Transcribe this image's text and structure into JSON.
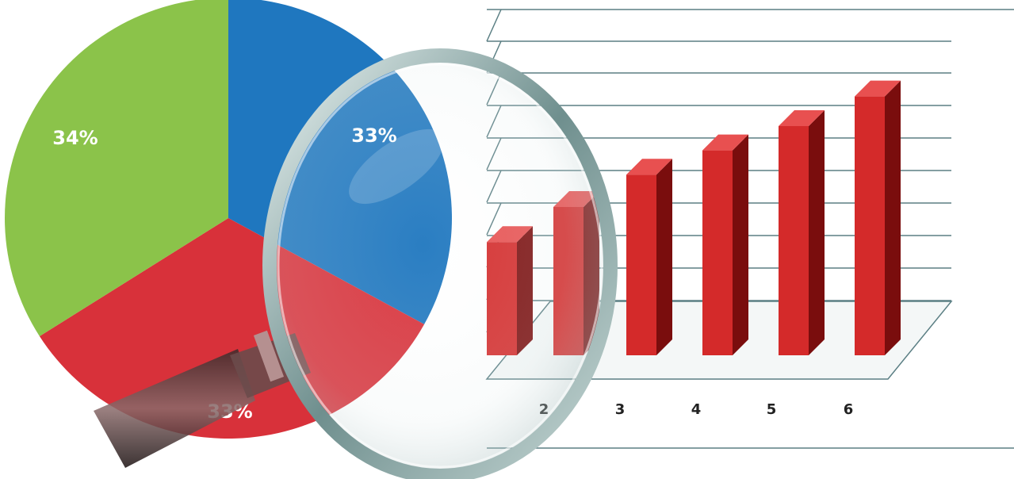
{
  "colors": {
    "blue": "#1f77bf",
    "red": "#d8313a",
    "green": "#8bc34a",
    "bar_front": "#d42a2a",
    "bar_side": "#7a0d0d",
    "bar_top": "#e85050",
    "grid": "#5b7f84"
  },
  "pie": {
    "slices": [
      {
        "label": "33%",
        "value": 33,
        "color": "#1f77bf"
      },
      {
        "label": "33%",
        "value": 33,
        "color": "#d8313a"
      },
      {
        "label": "34%",
        "value": 34,
        "color": "#8bc34a"
      }
    ]
  },
  "bars": {
    "tick_labels": [
      "2",
      "3",
      "4",
      "5",
      "6"
    ],
    "relative_heights": [
      0.42,
      0.55,
      0.67,
      0.76,
      0.85,
      0.96
    ]
  },
  "magnifier": {
    "icon": "magnifying-glass-icon"
  }
}
